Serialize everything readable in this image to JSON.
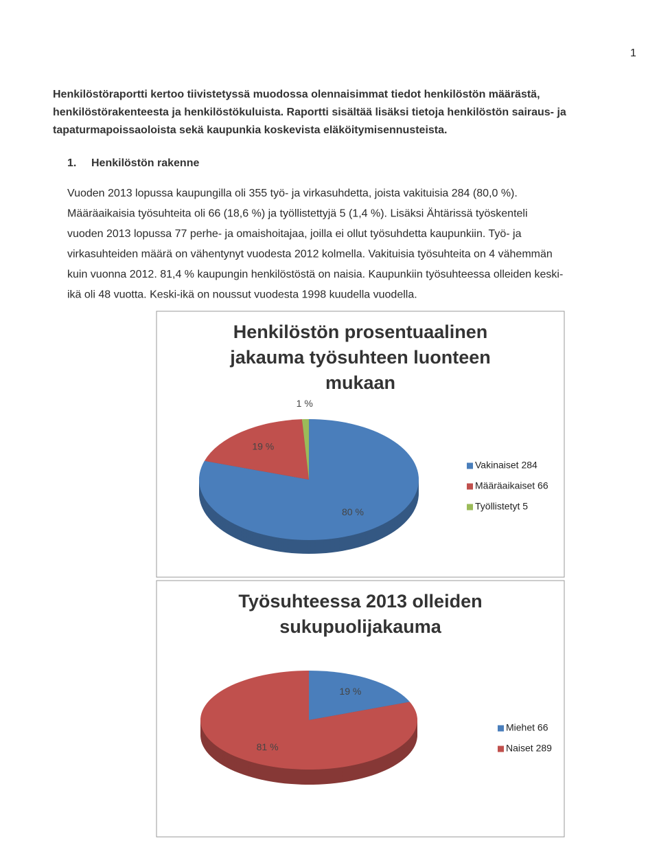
{
  "page_number": "1",
  "intro_lines": [
    "Henkilöstöraportti kertoo tiivistetyssä muodossa olennaisimmat tiedot henkilöstön määrästä,",
    "henkilöstörakenteesta ja henkilöstökuluista. Raportti sisältää lisäksi tietoja henkilöstön sairaus- ja",
    "tapaturmapoissaoloista sekä kaupunkia koskevista eläköitymisennusteista."
  ],
  "section": {
    "number": "1.",
    "title": "Henkilöstön rakenne"
  },
  "paragraph_lines": [
    "Vuoden 2013 lopussa kaupungilla oli 355 työ- ja virkasuhdetta, joista vakituisia 284 (80,0 %).",
    "Määräaikaisia työsuhteita oli 66 (18,6 %) ja työllistettyjä 5 (1,4 %). Lisäksi Ähtärissä työskenteli",
    "vuoden 2013 lopussa 77 perhe- ja omaishoitajaa, joilla ei ollut työsuhdetta kaupunkiin. Työ- ja",
    "virkasuhteiden määrä on vähentynyt vuodesta 2012 kolmella. Vakituisia työsuhteita on 4 vähemmän",
    "kuin vuonna 2012. 81,4 % kaupungin henkilöstöstä on naisia. Kaupunkiin työsuhteessa olleiden keski-",
    "ikä oli 48 vuotta. Keski-ikä on noussut vuodesta 1998 kuudella vuodella."
  ],
  "chart_data": [
    {
      "type": "pie",
      "title": [
        "Henkilöstön prosentuaalinen",
        "jakauma työsuhteen luonteen",
        "mukaan"
      ],
      "categories": [
        "Vakinaiset 284",
        "Määräaikaiset 66",
        "Työllistetyt 5"
      ],
      "values": [
        80,
        19,
        1
      ],
      "value_labels": [
        "80 %",
        "19 %",
        "1 %"
      ],
      "colors": [
        "#4a7ebb",
        "#c0504d",
        "#9bbb59"
      ]
    },
    {
      "type": "pie",
      "title": [
        "Työsuhteessa 2013 olleiden",
        "sukupuolijakauma"
      ],
      "categories": [
        "Miehet 66",
        "Naiset 289"
      ],
      "values": [
        19,
        81
      ],
      "value_labels": [
        "19 %",
        "81 %"
      ],
      "colors": [
        "#4a7ebb",
        "#c0504d"
      ]
    }
  ]
}
